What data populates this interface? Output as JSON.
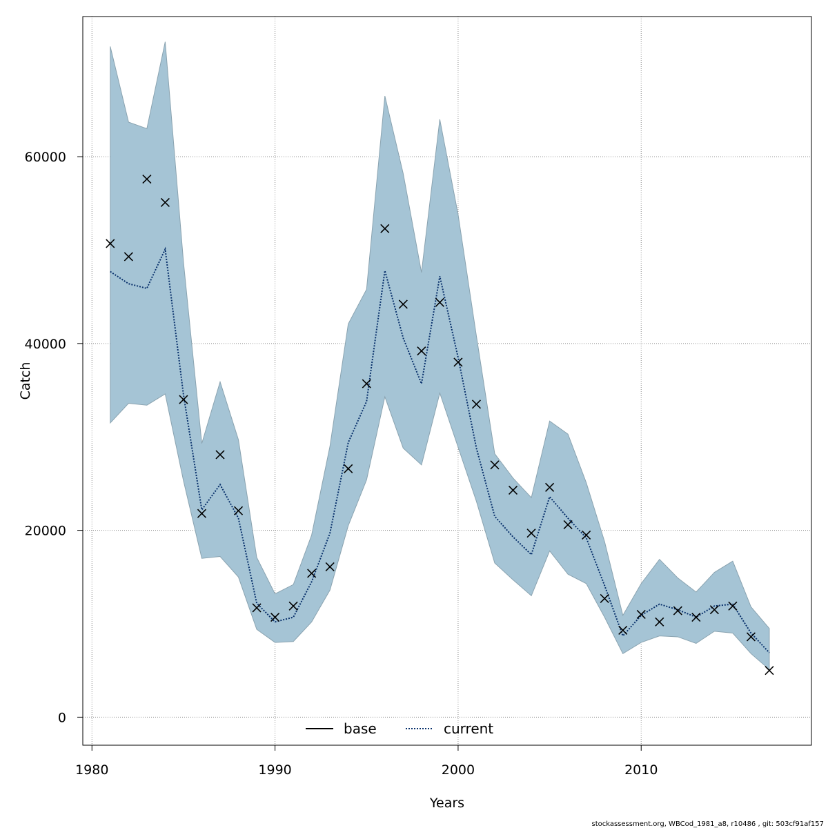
{
  "chart_data": {
    "type": "line",
    "title": "",
    "xlabel": "Years",
    "ylabel": "Catch",
    "xlim": [
      1979.5,
      2019.3
    ],
    "ylim": [
      -3000,
      75000
    ],
    "x_ticks": [
      1980,
      1990,
      2000,
      2010
    ],
    "y_ticks": [
      0,
      20000,
      40000,
      60000
    ],
    "x_tick_labels": [
      "1980",
      "1990",
      "2000",
      "2010"
    ],
    "y_tick_labels": [
      "0",
      "20000",
      "40000",
      "60000"
    ],
    "grid": true,
    "legend_position": "bottom",
    "legend": [
      "base",
      "current"
    ],
    "colors": {
      "band_fill": "#a5c4d5",
      "band_stroke": "#8aa3b0",
      "current_line": "#08306b",
      "base_line": "#000000",
      "observed_marker": "#000000",
      "grid": "#8c8c8c"
    },
    "years": [
      1981,
      1982,
      1983,
      1984,
      1985,
      1986,
      1987,
      1988,
      1989,
      1990,
      1991,
      1992,
      1993,
      1994,
      1995,
      1996,
      1997,
      1998,
      1999,
      2000,
      2001,
      2002,
      2003,
      2004,
      2005,
      2006,
      2007,
      2008,
      2009,
      2010,
      2011,
      2012,
      2013,
      2014,
      2015,
      2016,
      2017
    ],
    "series": [
      {
        "name": "current",
        "values": [
          47700,
          46400,
          45900,
          50100,
          34500,
          22200,
          24900,
          21300,
          12200,
          10200,
          10700,
          14500,
          19700,
          29400,
          33800,
          47800,
          40600,
          35700,
          47200,
          38500,
          28800,
          21500,
          19300,
          17400,
          23600,
          21300,
          19200,
          14100,
          8700,
          10900,
          12100,
          11500,
          10700,
          11900,
          12100,
          9000,
          6900
        ]
      },
      {
        "name": "base",
        "values": [
          47700,
          46400,
          45900,
          50100,
          34500,
          22200,
          24900,
          21300,
          12200,
          10200,
          10700,
          14500,
          19700,
          29400,
          33800,
          47800,
          40600,
          35700,
          47200,
          38500,
          28800,
          21500,
          19300,
          17400,
          23600,
          21300,
          19200,
          14100,
          8700,
          10900,
          12100,
          11500,
          10700,
          11900,
          12100,
          9000,
          6900
        ]
      }
    ],
    "band_upper": [
      71800,
      63700,
      63000,
      72300,
      48700,
      29300,
      35900,
      29700,
      17100,
      13200,
      14200,
      19500,
      29000,
      42100,
      45800,
      66500,
      58200,
      47600,
      64000,
      53800,
      40800,
      28200,
      25600,
      23500,
      31700,
      30300,
      25100,
      18800,
      10900,
      14300,
      16900,
      14900,
      13400,
      15500,
      16700,
      11800,
      9500
    ],
    "band_lower": [
      31500,
      33600,
      33400,
      34600,
      25300,
      17000,
      17200,
      15000,
      9400,
      8000,
      8100,
      10200,
      13600,
      20500,
      25400,
      34300,
      28800,
      27000,
      34700,
      28900,
      23100,
      16500,
      14700,
      13000,
      17800,
      15300,
      14300,
      10700,
      6800,
      8000,
      8700,
      8600,
      7900,
      9200,
      9000,
      6800,
      5100
    ],
    "observed": [
      50700,
      49300,
      57600,
      55100,
      34000,
      21800,
      28100,
      22100,
      11700,
      10700,
      11900,
      15400,
      16100,
      26600,
      35700,
      52300,
      44200,
      39200,
      44400,
      38000,
      33500,
      27000,
      24300,
      19700,
      24600,
      20600,
      19500,
      12700,
      9300,
      11000,
      10200,
      11400,
      10700,
      11500,
      11900,
      8600,
      5000
    ]
  },
  "footer": "stockassessment.org, WBCod_1981_a8, r10486 , git: 503cf91af157"
}
